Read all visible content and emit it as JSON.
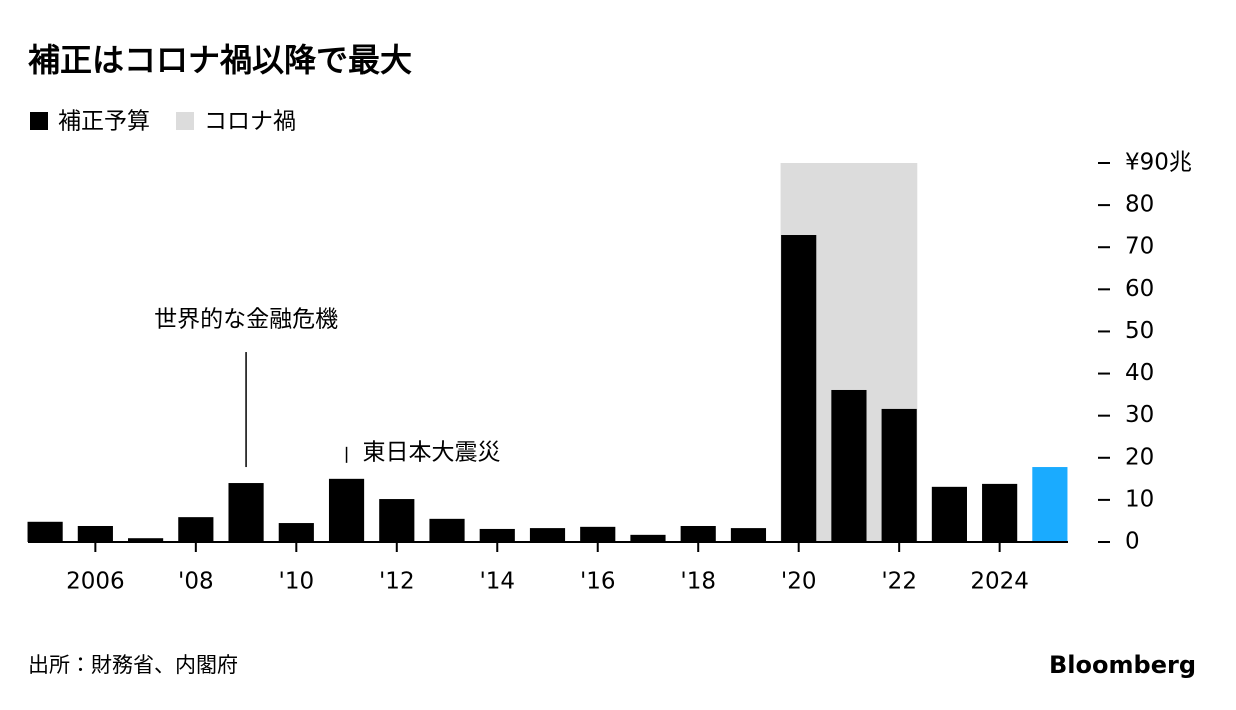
{
  "chart_data": {
    "type": "bar",
    "title": "補正はコロナ禍以降で最大",
    "x": [
      2005,
      2006,
      2007,
      2008,
      2009,
      2010,
      2011,
      2012,
      2013,
      2014,
      2015,
      2016,
      2017,
      2018,
      2019,
      2020,
      2021,
      2022,
      2023,
      2024,
      2025
    ],
    "series": [
      {
        "name": "補正予算",
        "color": "#000000",
        "values": [
          4.8,
          3.8,
          0.9,
          5.9,
          14.0,
          4.5,
          15.0,
          10.2,
          5.5,
          3.1,
          3.3,
          3.6,
          1.7,
          3.8,
          3.3,
          72.9,
          36.1,
          31.6,
          13.1,
          13.8,
          17.8
        ],
        "colors": [
          "#000000",
          "#000000",
          "#000000",
          "#000000",
          "#000000",
          "#000000",
          "#000000",
          "#000000",
          "#000000",
          "#000000",
          "#000000",
          "#000000",
          "#000000",
          "#000000",
          "#000000",
          "#000000",
          "#000000",
          "#000000",
          "#000000",
          "#000000",
          "#1aabff"
        ]
      }
    ],
    "shade": {
      "name": "コロナ禍",
      "color": "#dcdcdc",
      "x_range": [
        2020,
        2022
      ]
    },
    "annotations": [
      {
        "text": "世界的な金融危機",
        "x": 2009
      },
      {
        "text": "東日本大震災",
        "x": 2011
      }
    ],
    "xlim": [
      2004.5,
      2025.5
    ],
    "xticks": [
      {
        "value": 2006,
        "label": "2006"
      },
      {
        "value": 2008,
        "label": "'08"
      },
      {
        "value": 2010,
        "label": "'10"
      },
      {
        "value": 2012,
        "label": "'12"
      },
      {
        "value": 2014,
        "label": "'14"
      },
      {
        "value": 2016,
        "label": "'16"
      },
      {
        "value": 2018,
        "label": "'18"
      },
      {
        "value": 2020,
        "label": "'20"
      },
      {
        "value": 2022,
        "label": "'22"
      },
      {
        "value": 2024,
        "label": "2024"
      }
    ],
    "ylim": [
      0,
      90
    ],
    "yticks": [
      0,
      10,
      20,
      30,
      40,
      50,
      60,
      70,
      80,
      {
        "value": 90,
        "label": "¥90兆"
      }
    ],
    "source": "出所：財務省、内閣府",
    "logo": "Bloomberg"
  }
}
